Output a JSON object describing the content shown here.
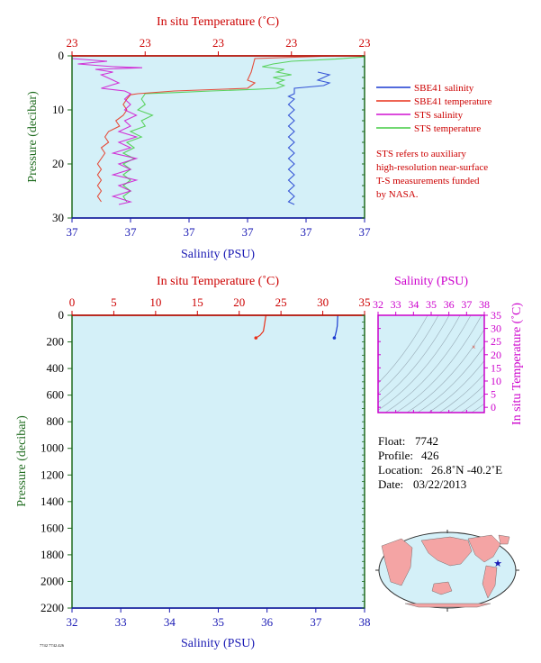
{
  "colors": {
    "background": "#ffffff",
    "plot_bg": "#d4f0f8",
    "red": "#cc0000",
    "blue": "#1a1ab4",
    "magenta": "#cc00cc",
    "green": "#1e6b1e",
    "sbe_salinity": "#1a3ad0",
    "sbe_temperature": "#e8301a",
    "sts_salinity": "#d010d0",
    "sts_temperature": "#44cc44",
    "land": "#f4a4a4",
    "ocean": "#d4f0f8"
  },
  "top_panel": {
    "top_axis_title": "In situ Temperature (˚C)",
    "bottom_axis_title": "Salinity (PSU)",
    "left_axis_title": "Pressure (decibar)",
    "top_ticks": [
      "23",
      "23",
      "23",
      "23",
      "23"
    ],
    "bottom_ticks": [
      "37",
      "37",
      "37",
      "37",
      "37",
      "37"
    ],
    "left_ticks": [
      "0",
      "10",
      "20",
      "30"
    ]
  },
  "legend": {
    "items": [
      {
        "label": "SBE41 salinity",
        "color": "#1a3ad0"
      },
      {
        "label": "SBE41 temperature",
        "color": "#e8301a"
      },
      {
        "label": "STS salinity",
        "color": "#d010d0"
      },
      {
        "label": "STS temperature",
        "color": "#44cc44"
      }
    ],
    "note_lines": [
      "STS refers to auxiliary",
      "high-resolution near-surface",
      "T-S measurements funded",
      "by NASA."
    ]
  },
  "bottom_panel": {
    "top_axis_title": "In situ Temperature (˚C)",
    "bottom_axis_title": "Salinity (PSU)",
    "left_axis_title": "Pressure (decibar)",
    "top_ticks": [
      "0",
      "5",
      "10",
      "15",
      "20",
      "25",
      "30",
      "35"
    ],
    "bottom_ticks": [
      "32",
      "33",
      "34",
      "35",
      "36",
      "37",
      "38"
    ],
    "left_ticks": [
      "0",
      "200",
      "400",
      "600",
      "800",
      "1000",
      "1200",
      "1400",
      "1600",
      "1800",
      "2000",
      "2200"
    ]
  },
  "ts_panel": {
    "top_axis_title": "Salinity (PSU)",
    "right_axis_title": "In situ Temperature (˚C)",
    "top_ticks": [
      "32",
      "33",
      "34",
      "35",
      "36",
      "37",
      "38"
    ],
    "right_ticks": [
      "0",
      "5",
      "10",
      "15",
      "20",
      "25",
      "30",
      "35"
    ]
  },
  "info": {
    "float_label": "Float:",
    "float_value": "7742",
    "profile_label": "Profile:",
    "profile_value": "426",
    "location_label": "Location:",
    "location_value": "26.8˚N  -40.2˚E",
    "date_label": "Date:",
    "date_value": "03/22/2013"
  },
  "footer_text": "7742 7742.426",
  "chart_data": [
    {
      "type": "line",
      "title": "",
      "panel": "near-surface profile",
      "xlabel": "Salinity (PSU)",
      "x2label": "In situ Temperature (˚C)",
      "ylabel": "Pressure (decibar)",
      "ylim": [
        30,
        0
      ],
      "salinity_range": [
        37.0,
        37.5
      ],
      "temperature_range": [
        22.6,
        23.4
      ],
      "series": [
        {
          "name": "SBE41 salinity",
          "axis": "salinity",
          "color": "#1a3ad0",
          "points": [
            [
              37.42,
              3.0
            ],
            [
              37.44,
              3.5
            ],
            [
              37.43,
              4.0
            ],
            [
              37.42,
              4.5
            ],
            [
              37.44,
              5.0
            ],
            [
              37.43,
              5.5
            ],
            [
              37.38,
              6.0
            ],
            [
              37.38,
              7.0
            ],
            [
              37.37,
              7.5
            ],
            [
              37.38,
              8.0
            ],
            [
              37.37,
              9
            ],
            [
              37.38,
              10
            ],
            [
              37.37,
              11
            ],
            [
              37.38,
              12
            ],
            [
              37.37,
              13
            ],
            [
              37.38,
              14
            ],
            [
              37.37,
              15
            ],
            [
              37.38,
              16
            ],
            [
              37.37,
              17
            ],
            [
              37.38,
              18
            ],
            [
              37.37,
              19
            ],
            [
              37.38,
              20
            ],
            [
              37.37,
              21
            ],
            [
              37.38,
              22
            ],
            [
              37.37,
              23
            ],
            [
              37.38,
              24
            ],
            [
              37.37,
              25
            ],
            [
              37.38,
              26
            ],
            [
              37.37,
              27
            ],
            [
              37.38,
              27.5
            ]
          ]
        },
        {
          "name": "SBE41 temperature",
          "axis": "temperature",
          "color": "#e8301a",
          "points": [
            [
              23.32,
              0
            ],
            [
              23.1,
              0.5
            ],
            [
              23.09,
              3.0
            ],
            [
              23.08,
              4.5
            ],
            [
              23.1,
              5.0
            ],
            [
              23.09,
              5.5
            ],
            [
              23.08,
              6.0
            ],
            [
              22.88,
              6.5
            ],
            [
              22.78,
              7.0
            ],
            [
              22.76,
              7.2
            ],
            [
              22.75,
              8
            ],
            [
              22.74,
              9
            ],
            [
              22.75,
              10
            ],
            [
              22.74,
              11
            ],
            [
              22.72,
              12
            ],
            [
              22.73,
              13
            ],
            [
              22.7,
              14
            ],
            [
              22.69,
              15
            ],
            [
              22.7,
              16
            ],
            [
              22.68,
              17
            ],
            [
              22.69,
              18
            ],
            [
              22.68,
              19
            ],
            [
              22.67,
              20
            ],
            [
              22.68,
              21
            ],
            [
              22.67,
              22
            ],
            [
              22.68,
              23
            ],
            [
              22.67,
              24
            ],
            [
              22.68,
              25
            ],
            [
              22.67,
              26
            ],
            [
              22.68,
              27
            ]
          ]
        },
        {
          "name": "STS salinity",
          "axis": "salinity",
          "color": "#d010d0",
          "points": [
            [
              37.0,
              0.5
            ],
            [
              37.06,
              1.0
            ],
            [
              37.01,
              1.5
            ],
            [
              37.07,
              2.0
            ],
            [
              37.12,
              2.2
            ],
            [
              37.04,
              2.5
            ],
            [
              37.07,
              3.0
            ],
            [
              37.05,
              3.5
            ],
            [
              37.06,
              4.0
            ],
            [
              37.08,
              5.0
            ],
            [
              37.05,
              6.0
            ],
            [
              37.09,
              6.5
            ],
            [
              37.1,
              7.0
            ],
            [
              37.09,
              8.0
            ],
            [
              37.1,
              9.0
            ],
            [
              37.09,
              10
            ],
            [
              37.11,
              11
            ],
            [
              37.09,
              12
            ],
            [
              37.1,
              13
            ],
            [
              37.08,
              14
            ],
            [
              37.11,
              15
            ],
            [
              37.08,
              16
            ],
            [
              37.1,
              17
            ],
            [
              37.07,
              18
            ],
            [
              37.11,
              19
            ],
            [
              37.08,
              20
            ],
            [
              37.1,
              21
            ],
            [
              37.07,
              22
            ],
            [
              37.11,
              23
            ],
            [
              37.08,
              24
            ],
            [
              37.1,
              25
            ],
            [
              37.07,
              26
            ],
            [
              37.1,
              27
            ],
            [
              37.08,
              27.5
            ]
          ]
        },
        {
          "name": "STS temperature",
          "axis": "temperature",
          "color": "#44cc44",
          "points": [
            [
              23.4,
              0.2
            ],
            [
              23.32,
              0.6
            ],
            [
              23.2,
              1.0
            ],
            [
              23.15,
              1.5
            ],
            [
              23.12,
              2.0
            ],
            [
              23.18,
              2.5
            ],
            [
              23.16,
              3.0
            ],
            [
              23.2,
              3.5
            ],
            [
              23.15,
              4.0
            ],
            [
              23.18,
              4.5
            ],
            [
              23.16,
              5.0
            ],
            [
              23.18,
              5.5
            ],
            [
              23.16,
              6.0
            ],
            [
              23.1,
              6.2
            ],
            [
              22.98,
              6.5
            ],
            [
              22.88,
              6.8
            ],
            [
              22.8,
              7.0
            ],
            [
              22.79,
              8
            ],
            [
              22.8,
              9
            ],
            [
              22.78,
              10
            ],
            [
              22.82,
              11
            ],
            [
              22.79,
              12
            ],
            [
              22.8,
              13
            ],
            [
              22.76,
              14
            ],
            [
              22.79,
              15
            ],
            [
              22.75,
              16
            ],
            [
              22.77,
              17
            ],
            [
              22.74,
              18
            ],
            [
              22.77,
              19
            ],
            [
              22.74,
              20
            ],
            [
              22.76,
              21
            ],
            [
              22.74,
              22
            ],
            [
              22.76,
              23
            ],
            [
              22.74,
              24
            ],
            [
              22.76,
              25
            ],
            [
              22.74,
              26
            ],
            [
              22.75,
              27
            ]
          ]
        }
      ]
    },
    {
      "type": "line",
      "title": "",
      "panel": "full-depth profile",
      "xlabel": "Salinity (PSU)",
      "x2label": "In situ Temperature (˚C)",
      "ylabel": "Pressure (decibar)",
      "xlim_salinity": [
        32,
        38
      ],
      "xlim_temperature": [
        0,
        35
      ],
      "ylim": [
        2200,
        0
      ],
      "series": [
        {
          "axis": "temperature",
          "color": "#e8301a",
          "points": [
            [
              23.2,
              0
            ],
            [
              23.0,
              80
            ],
            [
              22.9,
              120
            ],
            [
              22.5,
              150
            ],
            [
              22.0,
              170
            ]
          ]
        },
        {
          "axis": "salinity",
          "color": "#1a3ad0",
          "points": [
            [
              37.45,
              0
            ],
            [
              37.44,
              80
            ],
            [
              37.42,
              120
            ],
            [
              37.4,
              150
            ],
            [
              37.38,
              170
            ]
          ]
        }
      ]
    },
    {
      "type": "scatter",
      "title": "",
      "panel": "T-S diagram",
      "xlabel": "Salinity (PSU)",
      "ylabel": "In situ Temperature (˚C)",
      "xlim": [
        32,
        38
      ],
      "ylim": [
        -2,
        35
      ],
      "points": [
        [
          37.4,
          23.0
        ]
      ]
    },
    {
      "type": "scatter",
      "title": "",
      "panel": "location map",
      "points": [
        [
          -40.2,
          26.8
        ]
      ]
    }
  ]
}
